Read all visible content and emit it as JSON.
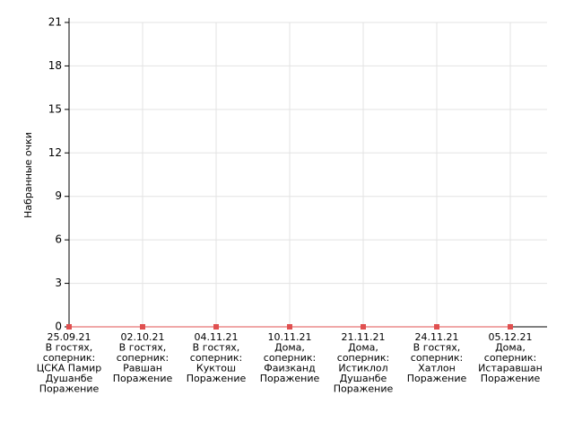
{
  "chart_data": {
    "type": "line",
    "y_label": "Набранные очки",
    "categories": [
      [
        "25.09.21",
        "В гостях,",
        "соперник:",
        "ЦСКА Памир",
        "Душанбе",
        "Поражение"
      ],
      [
        "02.10.21",
        "В гостях,",
        "соперник:",
        "Равшан",
        "Поражение"
      ],
      [
        "04.11.21",
        "В гостях,",
        "соперник:",
        "Куктош",
        "Поражение"
      ],
      [
        "10.11.21",
        "Дома,",
        "соперник:",
        "Фаизканд",
        "Поражение"
      ],
      [
        "21.11.21",
        "Дома,",
        "соперник:",
        "Истиклол",
        "Душанбе",
        "Поражение"
      ],
      [
        "24.11.21",
        "В гостях,",
        "соперник:",
        "Хатлон",
        "Поражение"
      ],
      [
        "05.12.21",
        "Дома,",
        "соперник:",
        "Истаравшан",
        "Поражение"
      ]
    ],
    "values": [
      0,
      0,
      0,
      0,
      0,
      0,
      0
    ],
    "color": "#e05050",
    "ylim": [
      0,
      21
    ],
    "yticks": [
      0,
      3,
      6,
      9,
      12,
      15,
      18,
      21
    ],
    "grid": true
  }
}
